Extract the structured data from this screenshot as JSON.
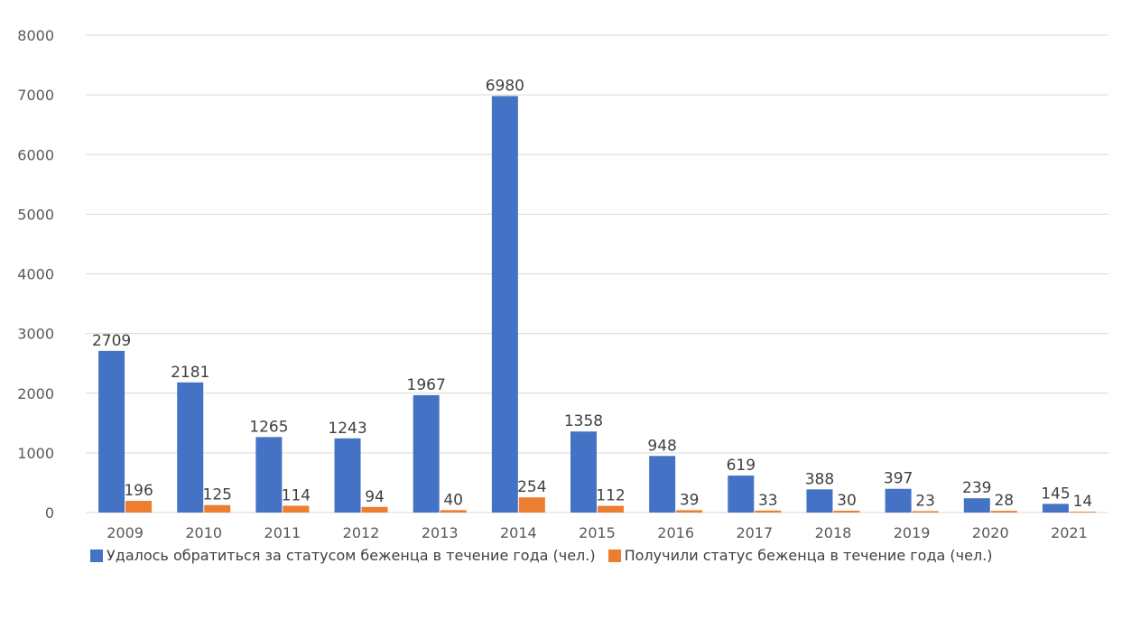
{
  "chart_data": {
    "type": "bar",
    "categories": [
      "2009",
      "2010",
      "2011",
      "2012",
      "2013",
      "2014",
      "2015",
      "2016",
      "2017",
      "2018",
      "2019",
      "2020",
      "2021"
    ],
    "series": [
      {
        "name": "Удалось обратиться за статусом беженца в течение года (чел.)",
        "color": "#4472C4",
        "values": [
          2709,
          2181,
          1265,
          1243,
          1967,
          6980,
          1358,
          948,
          619,
          388,
          397,
          239,
          145
        ]
      },
      {
        "name": "Получили статус беженца в течение года (чел.)",
        "color": "#ED7D31",
        "values": [
          196,
          125,
          114,
          94,
          40,
          254,
          112,
          39,
          33,
          30,
          23,
          28,
          14
        ]
      }
    ],
    "ylim": [
      0,
      8000
    ],
    "yticks": [
      0,
      1000,
      2000,
      3000,
      4000,
      5000,
      6000,
      7000,
      8000
    ],
    "grid": true,
    "legend_position": "bottom-left",
    "data_labels": true
  }
}
